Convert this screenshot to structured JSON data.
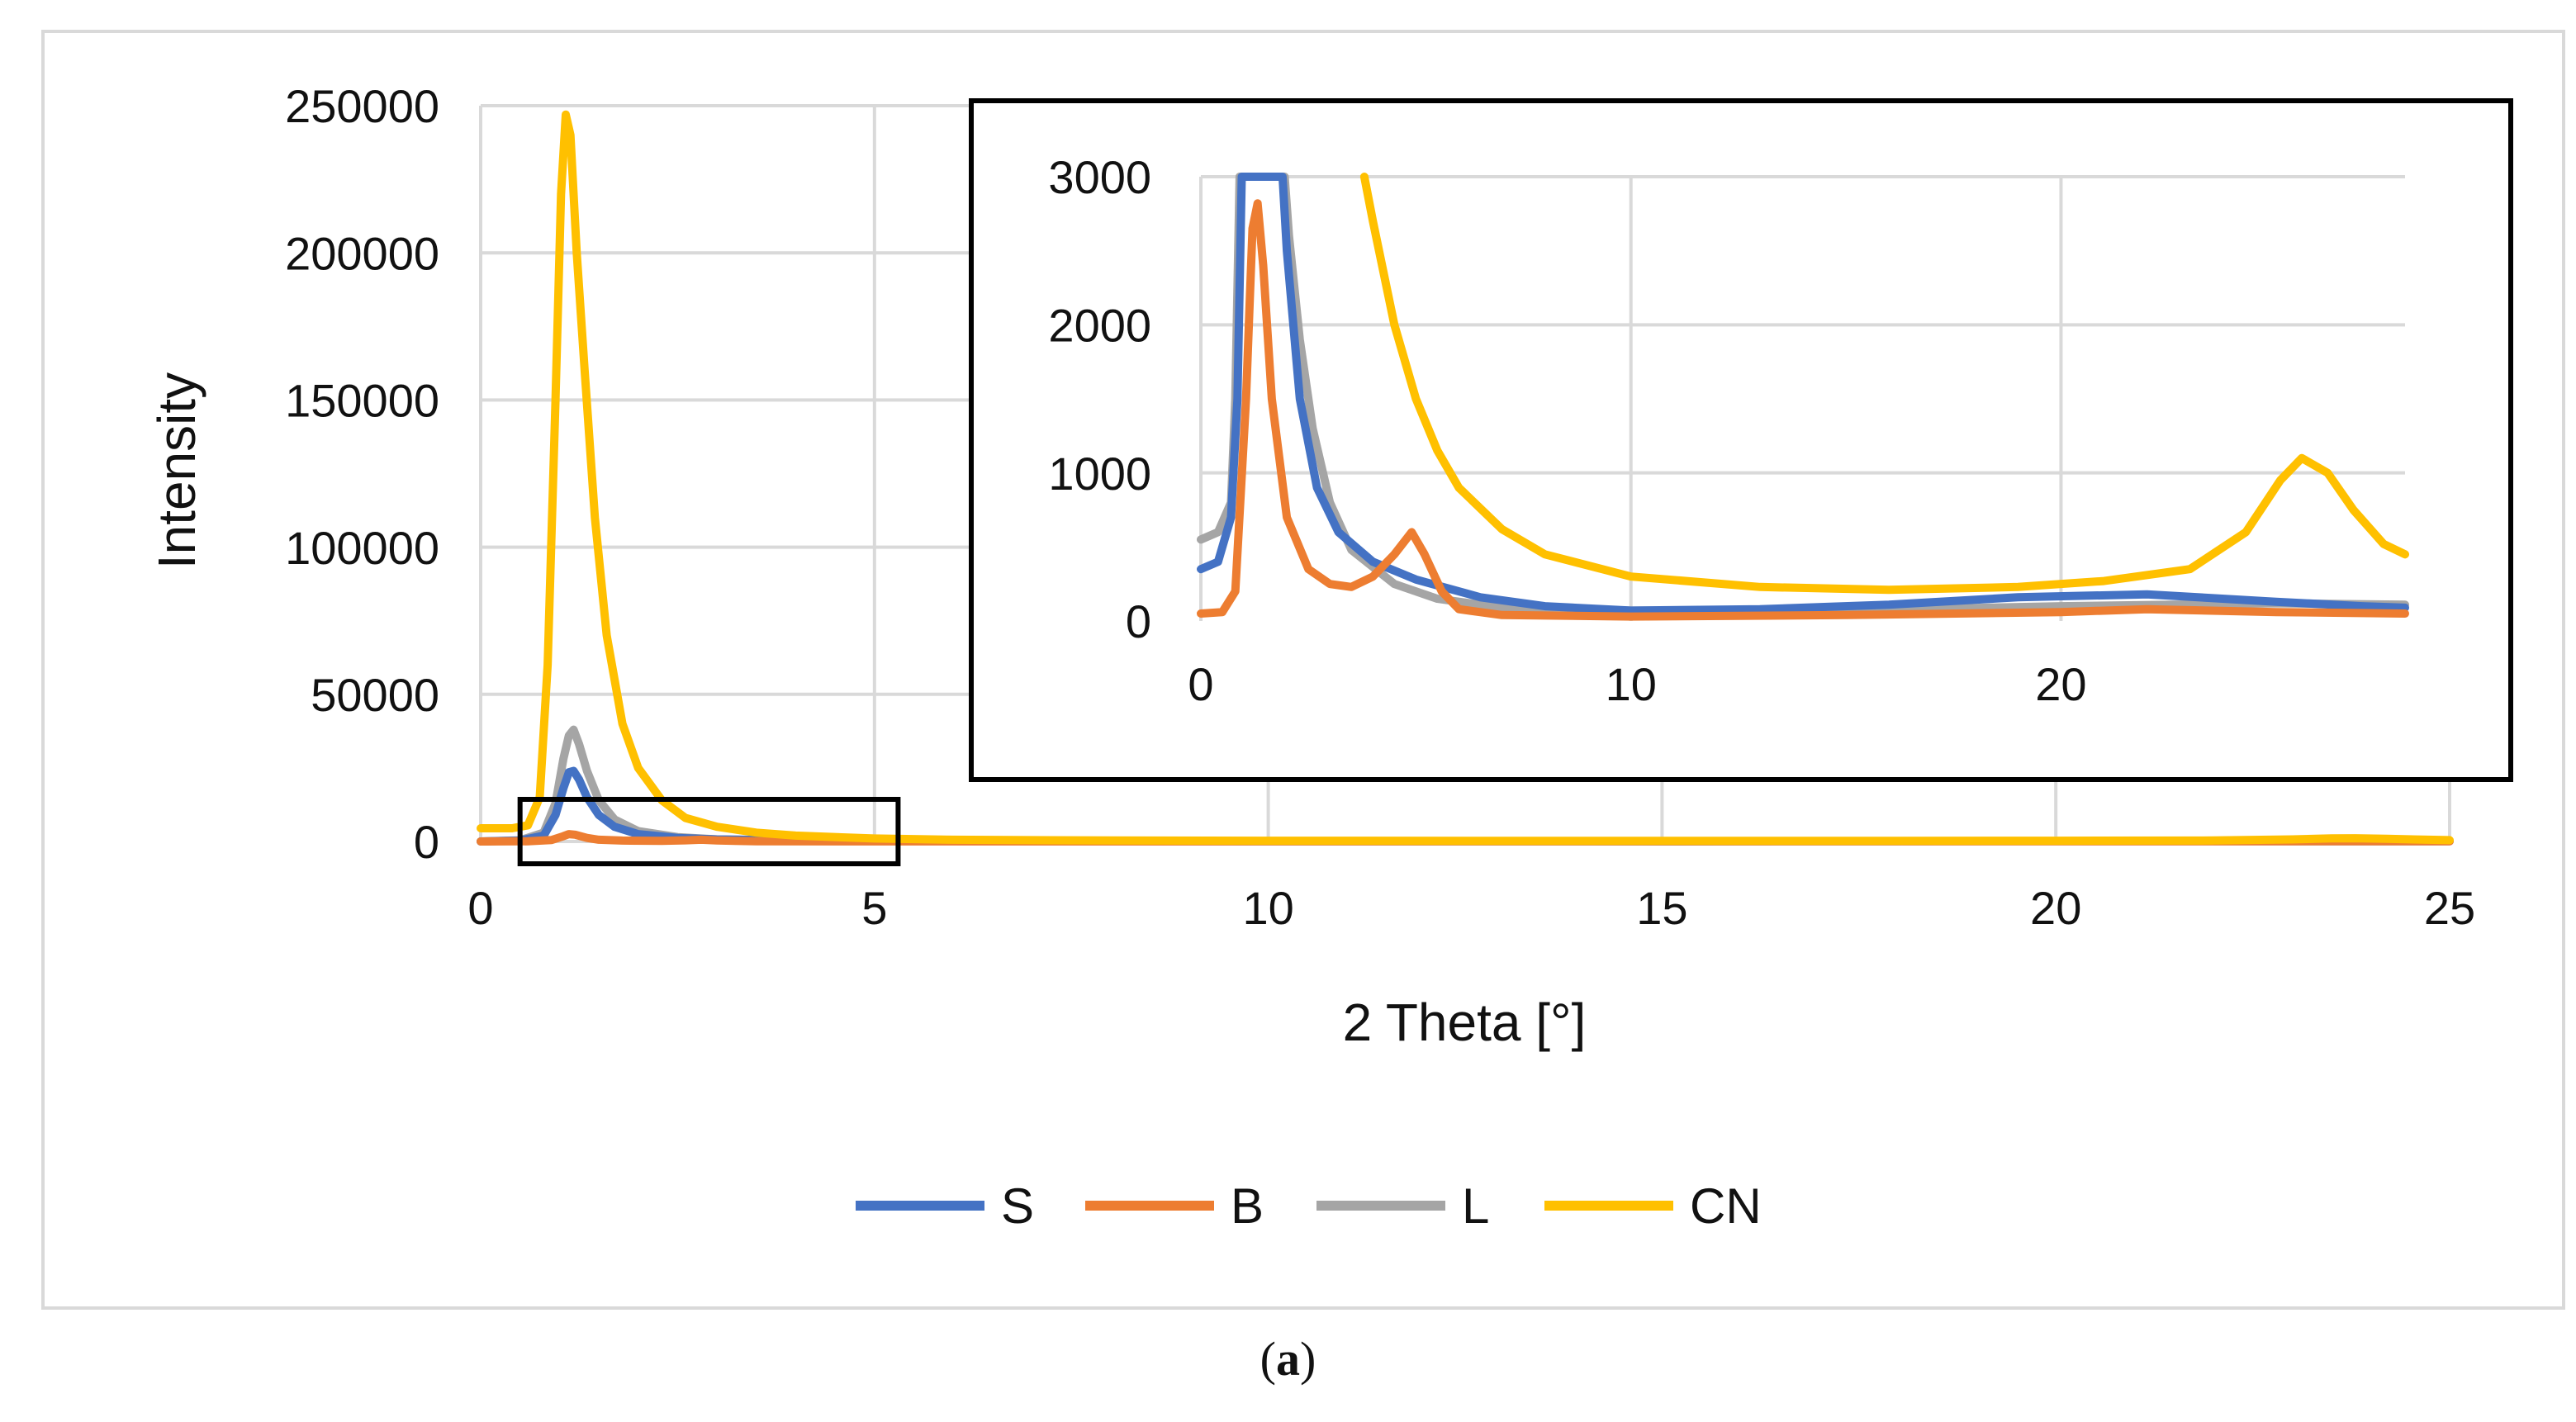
{
  "caption": {
    "open": "(",
    "letter": "a",
    "close": ")"
  },
  "chart_data": [
    {
      "id": "main",
      "type": "line",
      "xlabel": "2 Theta [°]",
      "ylabel": "Intensity",
      "xlim": [
        0,
        25
      ],
      "ylim": [
        0,
        250000
      ],
      "xticks": [
        0,
        5,
        10,
        15,
        20,
        25
      ],
      "yticks": [
        0,
        50000,
        100000,
        150000,
        200000,
        250000
      ],
      "xtick_labels": [
        "0",
        "5",
        "10",
        "15",
        "20",
        "25"
      ],
      "ytick_labels": [
        "0",
        "50000",
        "100000",
        "150000",
        "200000",
        "250000"
      ],
      "grid": "vertical and horizontal",
      "legend_position": "bottom",
      "zoom_box_x": [
        0.5,
        5.3
      ],
      "series": [
        {
          "name": "S",
          "color": "#4472C4",
          "points": [
            [
              0,
              0
            ],
            [
              0.5,
              300
            ],
            [
              0.8,
              2000
            ],
            [
              0.95,
              9000
            ],
            [
              1.05,
              18000
            ],
            [
              1.12,
              23500
            ],
            [
              1.18,
              24000
            ],
            [
              1.25,
              21000
            ],
            [
              1.35,
              15000
            ],
            [
              1.5,
              9000
            ],
            [
              1.7,
              5000
            ],
            [
              2,
              2500
            ],
            [
              2.5,
              1200
            ],
            [
              3,
              700
            ],
            [
              4,
              350
            ],
            [
              5,
              220
            ],
            [
              7,
              150
            ],
            [
              10,
              100
            ],
            [
              15,
              90
            ],
            [
              20,
              130
            ],
            [
              25,
              100
            ]
          ]
        },
        {
          "name": "B",
          "color": "#ED7D31",
          "points": [
            [
              0,
              0
            ],
            [
              0.6,
              50
            ],
            [
              0.9,
              500
            ],
            [
              1.05,
              1800
            ],
            [
              1.12,
              2500
            ],
            [
              1.2,
              2300
            ],
            [
              1.35,
              1200
            ],
            [
              1.5,
              600
            ],
            [
              1.8,
              300
            ],
            [
              2.3,
              200
            ],
            [
              2.6,
              400
            ],
            [
              2.8,
              600
            ],
            [
              3,
              350
            ],
            [
              3.5,
              80
            ],
            [
              5,
              40
            ],
            [
              10,
              50
            ],
            [
              15,
              50
            ],
            [
              20,
              80
            ],
            [
              25,
              50
            ]
          ]
        },
        {
          "name": "L",
          "color": "#A5A5A5",
          "points": [
            [
              0,
              0
            ],
            [
              0.5,
              400
            ],
            [
              0.8,
              3000
            ],
            [
              0.95,
              13000
            ],
            [
              1.05,
              28000
            ],
            [
              1.12,
              36000
            ],
            [
              1.18,
              38000
            ],
            [
              1.25,
              33000
            ],
            [
              1.35,
              24000
            ],
            [
              1.5,
              14000
            ],
            [
              1.7,
              7500
            ],
            [
              2,
              3500
            ],
            [
              2.5,
              1500
            ],
            [
              3,
              700
            ],
            [
              4,
              300
            ],
            [
              5,
              150
            ],
            [
              7,
              100
            ],
            [
              10,
              80
            ],
            [
              15,
              80
            ],
            [
              20,
              110
            ],
            [
              25,
              100
            ]
          ]
        },
        {
          "name": "CN",
          "color": "#FFC000",
          "points": [
            [
              0,
              4500
            ],
            [
              0.4,
              4500
            ],
            [
              0.6,
              5500
            ],
            [
              0.75,
              15000
            ],
            [
              0.85,
              60000
            ],
            [
              0.95,
              150000
            ],
            [
              1.02,
              220000
            ],
            [
              1.08,
              247000
            ],
            [
              1.14,
              240000
            ],
            [
              1.22,
              200000
            ],
            [
              1.32,
              160000
            ],
            [
              1.45,
              110000
            ],
            [
              1.6,
              70000
            ],
            [
              1.8,
              40000
            ],
            [
              2,
              25000
            ],
            [
              2.3,
              14000
            ],
            [
              2.6,
              8000
            ],
            [
              3,
              5000
            ],
            [
              3.5,
              3000
            ],
            [
              4,
              2000
            ],
            [
              5,
              1000
            ],
            [
              6,
              600
            ],
            [
              8,
              350
            ],
            [
              10,
              250
            ],
            [
              14,
              200
            ],
            [
              18,
              220
            ],
            [
              20,
              250
            ],
            [
              22,
              350
            ],
            [
              23,
              700
            ],
            [
              23.5,
              1050
            ],
            [
              23.8,
              1100
            ],
            [
              24.2,
              900
            ],
            [
              25,
              450
            ]
          ]
        }
      ]
    },
    {
      "id": "inset",
      "type": "line",
      "xlim": [
        0,
        28
      ],
      "ylim": [
        0,
        3000
      ],
      "xticks": [
        0,
        10,
        20
      ],
      "yticks": [
        0,
        1000,
        2000,
        3000
      ],
      "xtick_labels": [
        "0",
        "10",
        "20"
      ],
      "ytick_labels": [
        "0",
        "1000",
        "2000",
        "3000"
      ],
      "grid": "vertical and horizontal",
      "series": [
        {
          "name": "S",
          "color": "#4472C4",
          "points": [
            [
              0,
              350
            ],
            [
              0.4,
              400
            ],
            [
              0.7,
              700
            ],
            [
              0.85,
              1500
            ],
            [
              0.95,
              3000
            ],
            [
              1.9,
              3000
            ],
            [
              2,
              2500
            ],
            [
              2.3,
              1500
            ],
            [
              2.7,
              900
            ],
            [
              3.2,
              600
            ],
            [
              4,
              400
            ],
            [
              5,
              280
            ],
            [
              6.5,
              160
            ],
            [
              8,
              100
            ],
            [
              10,
              70
            ],
            [
              13,
              80
            ],
            [
              16,
              110
            ],
            [
              19,
              160
            ],
            [
              22,
              180
            ],
            [
              25,
              130
            ],
            [
              27,
              100
            ],
            [
              28,
              90
            ]
          ]
        },
        {
          "name": "B",
          "color": "#ED7D31",
          "points": [
            [
              0,
              50
            ],
            [
              0.5,
              60
            ],
            [
              0.8,
              200
            ],
            [
              1.05,
              1500
            ],
            [
              1.2,
              2650
            ],
            [
              1.32,
              2820
            ],
            [
              1.45,
              2400
            ],
            [
              1.65,
              1500
            ],
            [
              2,
              700
            ],
            [
              2.5,
              350
            ],
            [
              3,
              250
            ],
            [
              3.5,
              230
            ],
            [
              4,
              300
            ],
            [
              4.5,
              450
            ],
            [
              4.9,
              600
            ],
            [
              5.2,
              450
            ],
            [
              5.6,
              200
            ],
            [
              6,
              80
            ],
            [
              7,
              40
            ],
            [
              10,
              30
            ],
            [
              15,
              40
            ],
            [
              20,
              60
            ],
            [
              22,
              80
            ],
            [
              25,
              60
            ],
            [
              28,
              50
            ]
          ]
        },
        {
          "name": "L",
          "color": "#A5A5A5",
          "points": [
            [
              0,
              550
            ],
            [
              0.4,
              600
            ],
            [
              0.7,
              800
            ],
            [
              0.8,
              1500
            ],
            [
              0.9,
              3000
            ],
            [
              1.95,
              3000
            ],
            [
              2.05,
              2600
            ],
            [
              2.3,
              1900
            ],
            [
              2.6,
              1300
            ],
            [
              3,
              800
            ],
            [
              3.5,
              480
            ],
            [
              4.5,
              250
            ],
            [
              5.5,
              150
            ],
            [
              7,
              90
            ],
            [
              10,
              70
            ],
            [
              15,
              70
            ],
            [
              20,
              100
            ],
            [
              25,
              120
            ],
            [
              28,
              110
            ]
          ]
        },
        {
          "name": "CN",
          "color": "#FFC000",
          "points": [
            [
              3.8,
              3000
            ],
            [
              4,
              2700
            ],
            [
              4.5,
              2000
            ],
            [
              5,
              1500
            ],
            [
              5.5,
              1150
            ],
            [
              6,
              900
            ],
            [
              7,
              620
            ],
            [
              8,
              450
            ],
            [
              10,
              300
            ],
            [
              13,
              230
            ],
            [
              16,
              210
            ],
            [
              19,
              230
            ],
            [
              21,
              270
            ],
            [
              23,
              350
            ],
            [
              24.3,
              600
            ],
            [
              25.1,
              950
            ],
            [
              25.6,
              1100
            ],
            [
              26.2,
              1000
            ],
            [
              26.8,
              750
            ],
            [
              27.5,
              520
            ],
            [
              28,
              450
            ]
          ]
        }
      ]
    }
  ]
}
